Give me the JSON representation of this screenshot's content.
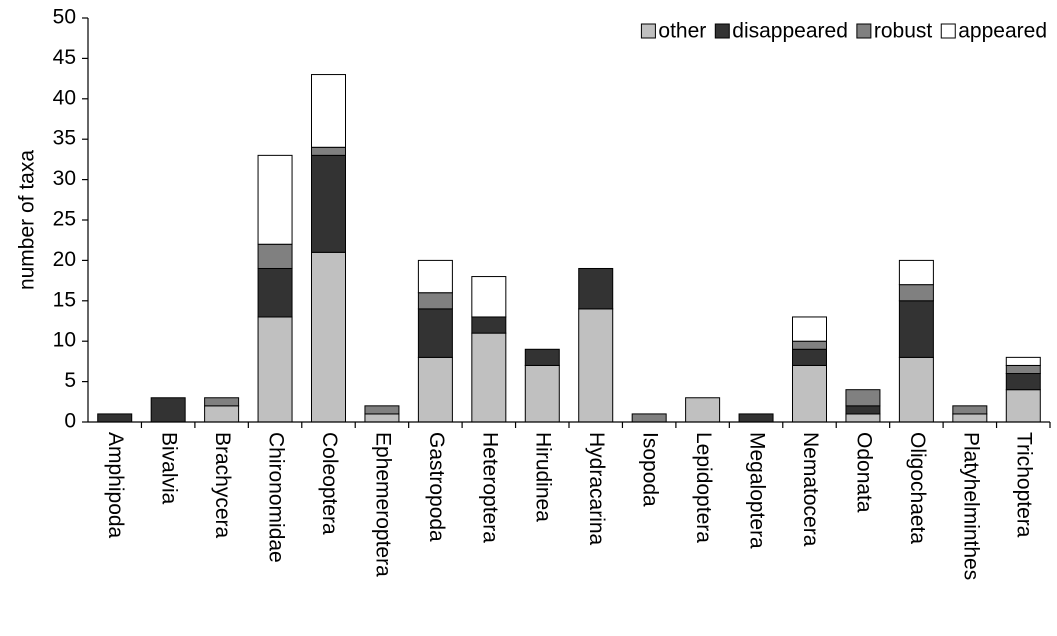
{
  "chart_data": {
    "type": "stacked-bar",
    "y_label": "number of taxa",
    "categories": [
      "Amphipoda",
      "Bivalvia",
      "Brachycera",
      "Chironomidae",
      "Coleoptera",
      "Ephemeroptera",
      "Gastropoda",
      "Heteroptera",
      "Hirudinea",
      "Hydracarina",
      "Isopoda",
      "Lepidoptera",
      "Megaloptera",
      "Nematocera",
      "Odonata",
      "Oligochaeta",
      "Platyhelminthes",
      "Trichoptera"
    ],
    "series": [
      {
        "name": "other",
        "color": "#c0c0c0",
        "values": [
          0,
          0,
          2,
          13,
          21,
          1,
          8,
          11,
          7,
          14,
          0,
          3,
          0,
          7,
          1,
          8,
          1,
          4
        ]
      },
      {
        "name": "disappeared",
        "color": "#333333",
        "values": [
          1,
          3,
          0,
          6,
          12,
          0,
          6,
          2,
          2,
          5,
          0,
          0,
          1,
          2,
          1,
          7,
          0,
          2
        ]
      },
      {
        "name": "robust",
        "color": "#808080",
        "values": [
          0,
          0,
          1,
          3,
          1,
          1,
          2,
          0,
          0,
          0,
          1,
          0,
          0,
          1,
          2,
          2,
          1,
          1
        ]
      },
      {
        "name": "appeared",
        "color": "#ffffff",
        "values": [
          0,
          0,
          0,
          11,
          9,
          0,
          4,
          5,
          0,
          0,
          0,
          0,
          0,
          3,
          0,
          3,
          0,
          1
        ]
      }
    ],
    "ylim": [
      0,
      50
    ],
    "yticks": [
      0,
      5,
      10,
      15,
      20,
      25,
      30,
      35,
      40,
      45,
      50
    ],
    "legend": "top-right"
  }
}
